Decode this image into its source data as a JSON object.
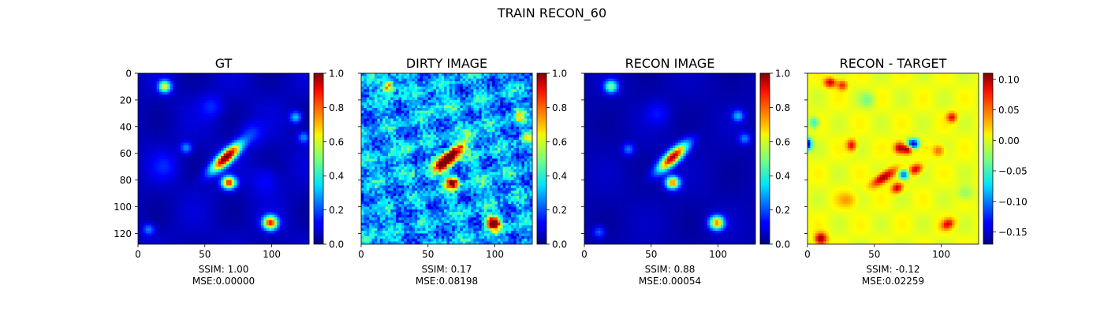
{
  "figure": {
    "title": "TRAIN RECON_60"
  },
  "chart_data": [
    {
      "type": "heatmap",
      "title": "GT",
      "xlabel": "SSIM: 1.00\nMSE:0.00000",
      "x_ticks": [
        0,
        50,
        100
      ],
      "y_ticks": [
        0,
        20,
        40,
        60,
        80,
        100,
        120
      ],
      "show_y_tick_labels": true,
      "xlim": [
        0,
        128
      ],
      "ylim": [
        128,
        0
      ],
      "colormap": "jet",
      "colorbar": {
        "range": [
          0.0,
          1.0
        ],
        "ticks": [
          "0.0",
          "0.2",
          "0.4",
          "0.6",
          "0.8",
          "1.0"
        ],
        "tick_values": [
          0.0,
          0.2,
          0.4,
          0.6,
          0.8,
          1.0
        ]
      },
      "ssim": 1.0,
      "mse": 0.0
    },
    {
      "type": "heatmap",
      "title": "DIRTY IMAGE",
      "xlabel": "SSIM: 0.17\nMSE:0.08198",
      "x_ticks": [
        0,
        50,
        100
      ],
      "y_ticks": [
        0,
        20,
        40,
        60,
        80,
        100,
        120
      ],
      "show_y_tick_labels": false,
      "xlim": [
        0,
        128
      ],
      "ylim": [
        128,
        0
      ],
      "colormap": "jet",
      "colorbar": {
        "range": [
          0.0,
          1.0
        ],
        "ticks": [
          "0.0",
          "0.2",
          "0.4",
          "0.6",
          "0.8",
          "1.0"
        ],
        "tick_values": [
          0.0,
          0.2,
          0.4,
          0.6,
          0.8,
          1.0
        ]
      },
      "ssim": 0.17,
      "mse": 0.08198
    },
    {
      "type": "heatmap",
      "title": "RECON IMAGE",
      "xlabel": "SSIM: 0.88\nMSE:0.00054",
      "x_ticks": [
        0,
        50,
        100
      ],
      "y_ticks": [
        0,
        20,
        40,
        60,
        80,
        100,
        120
      ],
      "show_y_tick_labels": false,
      "xlim": [
        0,
        128
      ],
      "ylim": [
        128,
        0
      ],
      "colormap": "jet",
      "colorbar": {
        "range": [
          0.0,
          1.0
        ],
        "ticks": [
          "0.0",
          "0.2",
          "0.4",
          "0.6",
          "0.8",
          "1.0"
        ],
        "tick_values": [
          0.0,
          0.2,
          0.4,
          0.6,
          0.8,
          1.0
        ]
      },
      "ssim": 0.88,
      "mse": 0.00054
    },
    {
      "type": "heatmap",
      "title": "RECON - TARGET",
      "xlabel": "SSIM: -0.12\nMSE:0.02259",
      "x_ticks": [
        0,
        50,
        100
      ],
      "y_ticks": [
        0,
        20,
        40,
        60,
        80,
        100,
        120
      ],
      "show_y_tick_labels": false,
      "xlim": [
        0,
        128
      ],
      "ylim": [
        128,
        0
      ],
      "colormap": "jet",
      "colorbar": {
        "range": [
          -0.17,
          0.11
        ],
        "ticks": [
          "0.10",
          "0.05",
          "0.00",
          "−0.05",
          "−0.10",
          "−0.15"
        ],
        "tick_values": [
          0.1,
          0.05,
          0.0,
          -0.05,
          -0.1,
          -0.15
        ]
      },
      "ssim": -0.12,
      "mse": 0.02259
    }
  ]
}
